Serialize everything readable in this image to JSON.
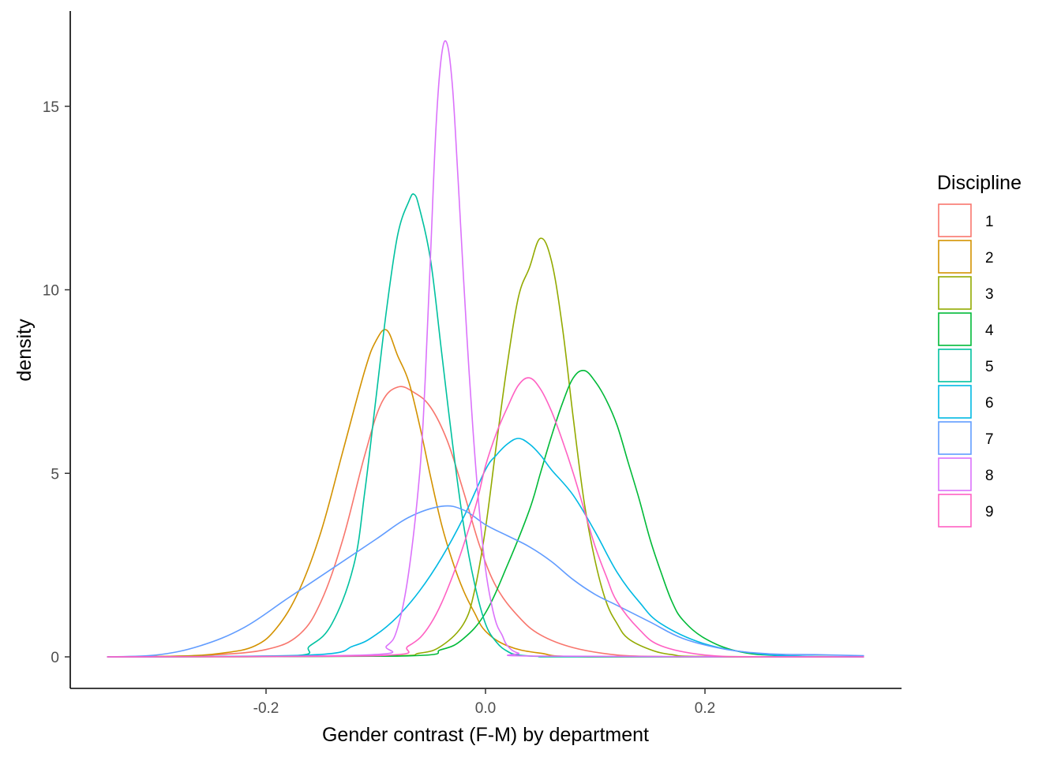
{
  "chart_data": {
    "type": "density",
    "title": "",
    "xlabel": "Gender contrast (F-M) by department",
    "ylabel": "density",
    "xlim": [
      -0.345,
      0.345
    ],
    "ylim": [
      0,
      17
    ],
    "x_ticks": [
      "-0.2",
      "0.0",
      "0.2"
    ],
    "y_ticks": [
      "0",
      "5",
      "10",
      "15"
    ],
    "grid": false,
    "legend": {
      "title": "Discipline",
      "position": "right"
    },
    "series": [
      {
        "name": "1",
        "color": "#F8766D",
        "x": [
          -0.345,
          -0.3,
          -0.25,
          -0.2,
          -0.17,
          -0.15,
          -0.13,
          -0.11,
          -0.095,
          -0.08,
          -0.065,
          -0.05,
          -0.035,
          -0.02,
          -0.005,
          0.01,
          0.03,
          0.05,
          0.08,
          0.12,
          0.16,
          0.2,
          0.345
        ],
        "y": [
          0,
          0.01,
          0.05,
          0.2,
          0.6,
          1.5,
          3.2,
          5.5,
          6.9,
          7.35,
          7.2,
          6.8,
          5.9,
          4.5,
          3.0,
          1.9,
          1.1,
          0.6,
          0.25,
          0.05,
          0.01,
          0,
          0
        ]
      },
      {
        "name": "2",
        "color": "#D39200",
        "x": [
          -0.345,
          -0.28,
          -0.24,
          -0.21,
          -0.19,
          -0.17,
          -0.15,
          -0.13,
          -0.11,
          -0.1,
          -0.09,
          -0.08,
          -0.07,
          -0.06,
          -0.05,
          -0.04,
          -0.03,
          -0.02,
          -0.01,
          0.0,
          0.02,
          0.05,
          0.1,
          0.345
        ],
        "y": [
          0,
          0.02,
          0.1,
          0.3,
          0.8,
          1.8,
          3.4,
          5.6,
          7.8,
          8.6,
          8.9,
          8.2,
          7.5,
          6.3,
          4.9,
          3.6,
          2.6,
          1.8,
          1.2,
          0.7,
          0.3,
          0.1,
          0,
          0
        ]
      },
      {
        "name": "3",
        "color": "#93AA00",
        "x": [
          -0.345,
          -0.1,
          -0.06,
          -0.04,
          -0.02,
          -0.01,
          0.0,
          0.01,
          0.02,
          0.03,
          0.04,
          0.05,
          0.06,
          0.07,
          0.08,
          0.09,
          0.1,
          0.11,
          0.12,
          0.13,
          0.15,
          0.17,
          0.2,
          0.345
        ],
        "y": [
          0,
          0.02,
          0.1,
          0.3,
          0.9,
          1.8,
          3.5,
          5.8,
          8.0,
          9.8,
          10.6,
          11.4,
          10.8,
          9.0,
          6.5,
          4.2,
          2.6,
          1.5,
          0.9,
          0.5,
          0.2,
          0.06,
          0.01,
          0
        ]
      },
      {
        "name": "4",
        "color": "#00BA38",
        "x": [
          -0.345,
          -0.08,
          -0.04,
          -0.02,
          0.0,
          0.02,
          0.04,
          0.05,
          0.06,
          0.07,
          0.08,
          0.09,
          0.1,
          0.11,
          0.12,
          0.13,
          0.14,
          0.15,
          0.16,
          0.17,
          0.18,
          0.2,
          0.23,
          0.27,
          0.345
        ],
        "y": [
          0,
          0.02,
          0.2,
          0.5,
          1.2,
          2.5,
          4.0,
          5.0,
          6.0,
          6.9,
          7.6,
          7.8,
          7.5,
          7.0,
          6.3,
          5.3,
          4.3,
          3.2,
          2.3,
          1.5,
          1.0,
          0.5,
          0.15,
          0.03,
          0
        ]
      },
      {
        "name": "5",
        "color": "#00C19F",
        "x": [
          -0.345,
          -0.18,
          -0.16,
          -0.14,
          -0.12,
          -0.11,
          -0.1,
          -0.09,
          -0.08,
          -0.07,
          -0.065,
          -0.06,
          -0.05,
          -0.04,
          -0.03,
          -0.02,
          -0.01,
          0.0,
          0.01,
          0.02,
          0.03,
          0.05,
          0.08,
          0.345
        ],
        "y": [
          0,
          0.02,
          0.3,
          0.9,
          2.5,
          4.5,
          7.0,
          9.5,
          11.5,
          12.4,
          12.6,
          12.2,
          10.8,
          8.3,
          5.8,
          3.6,
          2.0,
          0.9,
          0.4,
          0.15,
          0.05,
          0.01,
          0,
          0
        ]
      },
      {
        "name": "6",
        "color": "#00B9E3",
        "x": [
          -0.345,
          -0.16,
          -0.12,
          -0.1,
          -0.08,
          -0.06,
          -0.04,
          -0.02,
          0.0,
          0.01,
          0.02,
          0.03,
          0.04,
          0.05,
          0.06,
          0.08,
          0.1,
          0.12,
          0.14,
          0.16,
          0.2,
          0.25,
          0.3,
          0.345
        ],
        "y": [
          0,
          0.05,
          0.3,
          0.6,
          1.1,
          1.8,
          2.7,
          3.8,
          5.1,
          5.5,
          5.8,
          5.95,
          5.8,
          5.5,
          5.1,
          4.4,
          3.4,
          2.3,
          1.5,
          0.9,
          0.35,
          0.08,
          0.01,
          0
        ]
      },
      {
        "name": "7",
        "color": "#619CFF",
        "x": [
          -0.345,
          -0.3,
          -0.26,
          -0.22,
          -0.18,
          -0.14,
          -0.1,
          -0.07,
          -0.04,
          -0.02,
          0.0,
          0.02,
          0.04,
          0.06,
          0.08,
          0.1,
          0.12,
          0.15,
          0.18,
          0.22,
          0.26,
          0.3,
          0.345
        ],
        "y": [
          0,
          0.05,
          0.3,
          0.8,
          1.6,
          2.4,
          3.2,
          3.8,
          4.1,
          4.0,
          3.6,
          3.3,
          3.0,
          2.6,
          2.1,
          1.7,
          1.4,
          0.95,
          0.5,
          0.2,
          0.08,
          0.06,
          0.03
        ]
      },
      {
        "name": "8",
        "color": "#DB72FB",
        "x": [
          -0.345,
          -0.11,
          -0.09,
          -0.08,
          -0.07,
          -0.06,
          -0.055,
          -0.05,
          -0.045,
          -0.04,
          -0.035,
          -0.03,
          -0.025,
          -0.02,
          -0.015,
          -0.01,
          -0.005,
          0.0,
          0.005,
          0.01,
          0.015,
          0.02,
          0.03,
          0.05,
          0.345
        ],
        "y": [
          0,
          0.05,
          0.3,
          0.8,
          2.3,
          5.0,
          7.5,
          11.0,
          14.5,
          16.4,
          16.7,
          15.5,
          13.0,
          10.3,
          7.8,
          5.6,
          3.8,
          2.4,
          1.5,
          0.9,
          0.6,
          0.3,
          0.1,
          0.02,
          0
        ]
      },
      {
        "name": "9",
        "color": "#FF61C3",
        "x": [
          -0.345,
          -0.1,
          -0.07,
          -0.05,
          -0.03,
          -0.01,
          0.0,
          0.01,
          0.02,
          0.03,
          0.04,
          0.05,
          0.06,
          0.07,
          0.08,
          0.09,
          0.1,
          0.11,
          0.12,
          0.14,
          0.16,
          0.2,
          0.25,
          0.345
        ],
        "y": [
          0,
          0.03,
          0.3,
          0.9,
          2.2,
          4.0,
          5.2,
          6.1,
          6.8,
          7.4,
          7.6,
          7.3,
          6.7,
          5.9,
          5.0,
          4.0,
          3.0,
          2.2,
          1.5,
          0.75,
          0.3,
          0.05,
          0,
          0
        ]
      }
    ]
  }
}
